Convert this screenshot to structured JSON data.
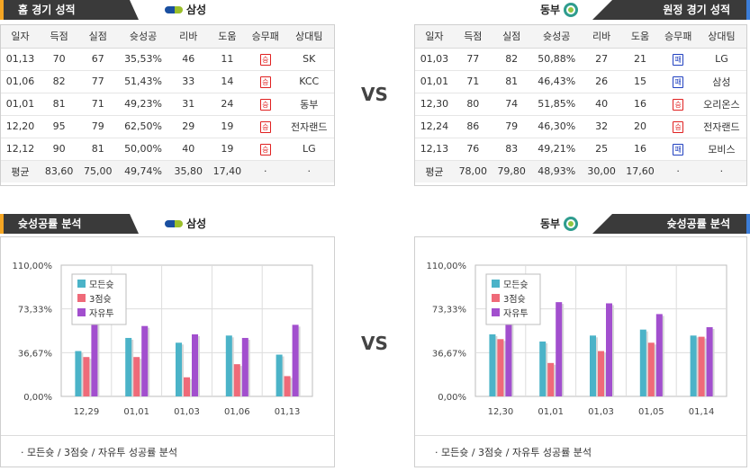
{
  "columns": [
    "일자",
    "득점",
    "실점",
    "슛성공",
    "리바",
    "도움",
    "승무패",
    "상대팀"
  ],
  "home": {
    "header_title": "홈 경기 성적",
    "team": "삼성",
    "rows": [
      {
        "date": "01,13",
        "pts": "70",
        "opp": "67",
        "fg": "35,53%",
        "reb": "46",
        "ast": "11",
        "result": "승",
        "result_type": "win",
        "vs": "SK"
      },
      {
        "date": "01,06",
        "pts": "82",
        "opp": "77",
        "fg": "51,43%",
        "reb": "33",
        "ast": "14",
        "result": "승",
        "result_type": "win",
        "vs": "KCC"
      },
      {
        "date": "01,01",
        "pts": "81",
        "opp": "71",
        "fg": "49,23%",
        "reb": "31",
        "ast": "24",
        "result": "승",
        "result_type": "win",
        "vs": "동부"
      },
      {
        "date": "12,20",
        "pts": "95",
        "opp": "79",
        "fg": "62,50%",
        "reb": "29",
        "ast": "19",
        "result": "승",
        "result_type": "win",
        "vs": "전자랜드"
      },
      {
        "date": "12,12",
        "pts": "90",
        "opp": "81",
        "fg": "50,00%",
        "reb": "40",
        "ast": "19",
        "result": "승",
        "result_type": "win",
        "vs": "LG"
      }
    ],
    "avg": {
      "label": "평균",
      "pts": "83,60",
      "opp": "75,00",
      "fg": "49,74%",
      "reb": "35,80",
      "ast": "17,40",
      "result": "·",
      "vs": "·"
    }
  },
  "away": {
    "header_title": "원정 경기 성적",
    "team": "동부",
    "rows": [
      {
        "date": "01,03",
        "pts": "77",
        "opp": "82",
        "fg": "50,88%",
        "reb": "27",
        "ast": "21",
        "result": "패",
        "result_type": "loss",
        "vs": "LG"
      },
      {
        "date": "01,01",
        "pts": "71",
        "opp": "81",
        "fg": "46,43%",
        "reb": "26",
        "ast": "15",
        "result": "패",
        "result_type": "loss",
        "vs": "삼성"
      },
      {
        "date": "12,30",
        "pts": "80",
        "opp": "74",
        "fg": "51,85%",
        "reb": "40",
        "ast": "16",
        "result": "승",
        "result_type": "win",
        "vs": "오리온스"
      },
      {
        "date": "12,24",
        "pts": "86",
        "opp": "79",
        "fg": "46,30%",
        "reb": "32",
        "ast": "20",
        "result": "승",
        "result_type": "win",
        "vs": "전자랜드"
      },
      {
        "date": "12,13",
        "pts": "76",
        "opp": "83",
        "fg": "49,21%",
        "reb": "25",
        "ast": "16",
        "result": "패",
        "result_type": "loss",
        "vs": "모비스"
      }
    ],
    "avg": {
      "label": "평균",
      "pts": "78,00",
      "opp": "79,80",
      "fg": "48,93%",
      "reb": "30,00",
      "ast": "17,60",
      "result": "·",
      "vs": "·"
    }
  },
  "vs_label": "VS",
  "analysis": {
    "header_title": "슛성공률 분석",
    "home_team": "삼성",
    "away_team": "동부",
    "note": "·  모든슛 / 3점슛 / 자유투 성공률 분석"
  },
  "colors": {
    "all": "#4bb3c8",
    "three": "#ef6a79",
    "ft": "#a24fce",
    "win": "#e02020",
    "loss": "#2040c0"
  },
  "chart_data": [
    {
      "type": "bar",
      "categories": [
        "12,29",
        "01,01",
        "01,03",
        "01,06",
        "01,13"
      ],
      "series": [
        {
          "name": "모든슛",
          "values": [
            38,
            49,
            45,
            51,
            35
          ]
        },
        {
          "name": "3점슛",
          "values": [
            33,
            33,
            16,
            27,
            17
          ]
        },
        {
          "name": "자유투",
          "values": [
            72,
            59,
            52,
            49,
            60
          ]
        }
      ],
      "yticks": [
        "110,00%",
        "73,33%",
        "36,67%",
        "0,00%"
      ],
      "ylim": [
        0,
        110
      ]
    },
    {
      "type": "bar",
      "categories": [
        "12,30",
        "01,01",
        "01,03",
        "01,05",
        "01,14"
      ],
      "series": [
        {
          "name": "모든슛",
          "values": [
            52,
            46,
            51,
            56,
            51
          ]
        },
        {
          "name": "3점슛",
          "values": [
            48,
            28,
            38,
            45,
            50
          ]
        },
        {
          "name": "자유투",
          "values": [
            68,
            79,
            78,
            69,
            58
          ]
        }
      ],
      "yticks": [
        "110,00%",
        "73,33%",
        "36,67%",
        "0,00%"
      ],
      "ylim": [
        0,
        110
      ]
    }
  ]
}
